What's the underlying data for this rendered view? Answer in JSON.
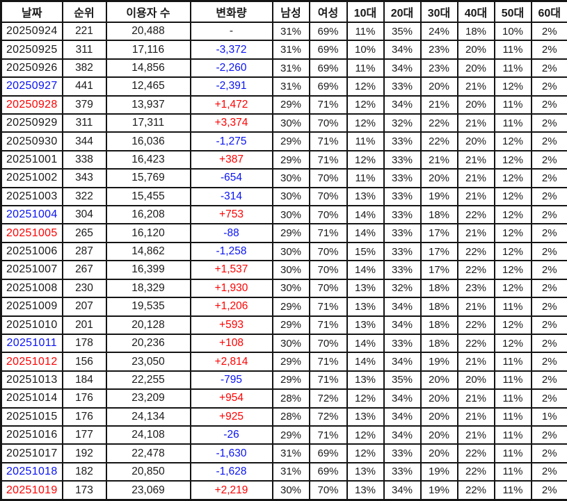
{
  "colors": {
    "text": "#1a1a1a",
    "border": "#141414",
    "positive_change": "#ff0000",
    "negative_change": "#0812f5",
    "sunday_date": "#ff0000",
    "saturday_date": "#0812f5",
    "background": "#ffffff"
  },
  "chart_data": {
    "type": "table",
    "title": "",
    "columns": [
      "날짜",
      "순위",
      "이용자 수",
      "변화량",
      "남성",
      "여성",
      "10대",
      "20대",
      "30대",
      "40대",
      "50대",
      "60대"
    ],
    "rows": [
      {
        "date": "20250924",
        "date_color": "black",
        "rank": "221",
        "users": "20,488",
        "change": "-",
        "change_color": "black",
        "percents": [
          "31%",
          "69%",
          "11%",
          "35%",
          "24%",
          "18%",
          "10%",
          "2%"
        ]
      },
      {
        "date": "20250925",
        "date_color": "black",
        "rank": "311",
        "users": "17,116",
        "change": "-3,372",
        "change_color": "blue",
        "percents": [
          "31%",
          "69%",
          "10%",
          "34%",
          "23%",
          "20%",
          "11%",
          "2%"
        ]
      },
      {
        "date": "20250926",
        "date_color": "black",
        "rank": "382",
        "users": "14,856",
        "change": "-2,260",
        "change_color": "blue",
        "percents": [
          "31%",
          "69%",
          "11%",
          "34%",
          "23%",
          "20%",
          "11%",
          "2%"
        ]
      },
      {
        "date": "20250927",
        "date_color": "blue",
        "rank": "441",
        "users": "12,465",
        "change": "-2,391",
        "change_color": "blue",
        "percents": [
          "31%",
          "69%",
          "12%",
          "33%",
          "20%",
          "21%",
          "12%",
          "2%"
        ]
      },
      {
        "date": "20250928",
        "date_color": "red",
        "rank": "379",
        "users": "13,937",
        "change": "+1,472",
        "change_color": "red",
        "percents": [
          "29%",
          "71%",
          "12%",
          "34%",
          "21%",
          "20%",
          "11%",
          "2%"
        ]
      },
      {
        "date": "20250929",
        "date_color": "black",
        "rank": "311",
        "users": "17,311",
        "change": "+3,374",
        "change_color": "red",
        "percents": [
          "30%",
          "70%",
          "12%",
          "32%",
          "22%",
          "21%",
          "11%",
          "2%"
        ]
      },
      {
        "date": "20250930",
        "date_color": "black",
        "rank": "344",
        "users": "16,036",
        "change": "-1,275",
        "change_color": "blue",
        "percents": [
          "29%",
          "71%",
          "11%",
          "33%",
          "22%",
          "20%",
          "12%",
          "2%"
        ]
      },
      {
        "date": "20251001",
        "date_color": "black",
        "rank": "338",
        "users": "16,423",
        "change": "+387",
        "change_color": "red",
        "percents": [
          "29%",
          "71%",
          "12%",
          "33%",
          "21%",
          "21%",
          "12%",
          "2%"
        ]
      },
      {
        "date": "20251002",
        "date_color": "black",
        "rank": "343",
        "users": "15,769",
        "change": "-654",
        "change_color": "blue",
        "percents": [
          "30%",
          "70%",
          "11%",
          "33%",
          "20%",
          "21%",
          "12%",
          "2%"
        ]
      },
      {
        "date": "20251003",
        "date_color": "black",
        "rank": "322",
        "users": "15,455",
        "change": "-314",
        "change_color": "blue",
        "percents": [
          "30%",
          "70%",
          "13%",
          "33%",
          "19%",
          "21%",
          "12%",
          "2%"
        ]
      },
      {
        "date": "20251004",
        "date_color": "blue",
        "rank": "304",
        "users": "16,208",
        "change": "+753",
        "change_color": "red",
        "percents": [
          "30%",
          "70%",
          "14%",
          "33%",
          "18%",
          "22%",
          "12%",
          "2%"
        ]
      },
      {
        "date": "20251005",
        "date_color": "red",
        "rank": "265",
        "users": "16,120",
        "change": "-88",
        "change_color": "blue",
        "percents": [
          "29%",
          "71%",
          "14%",
          "33%",
          "17%",
          "21%",
          "12%",
          "2%"
        ]
      },
      {
        "date": "20251006",
        "date_color": "black",
        "rank": "287",
        "users": "14,862",
        "change": "-1,258",
        "change_color": "blue",
        "percents": [
          "30%",
          "70%",
          "15%",
          "33%",
          "17%",
          "22%",
          "12%",
          "2%"
        ]
      },
      {
        "date": "20251007",
        "date_color": "black",
        "rank": "267",
        "users": "16,399",
        "change": "+1,537",
        "change_color": "red",
        "percents": [
          "30%",
          "70%",
          "14%",
          "33%",
          "17%",
          "22%",
          "12%",
          "2%"
        ]
      },
      {
        "date": "20251008",
        "date_color": "black",
        "rank": "230",
        "users": "18,329",
        "change": "+1,930",
        "change_color": "red",
        "percents": [
          "30%",
          "70%",
          "13%",
          "32%",
          "18%",
          "23%",
          "12%",
          "2%"
        ]
      },
      {
        "date": "20251009",
        "date_color": "black",
        "rank": "207",
        "users": "19,535",
        "change": "+1,206",
        "change_color": "red",
        "percents": [
          "29%",
          "71%",
          "13%",
          "34%",
          "18%",
          "21%",
          "11%",
          "2%"
        ]
      },
      {
        "date": "20251010",
        "date_color": "black",
        "rank": "201",
        "users": "20,128",
        "change": "+593",
        "change_color": "red",
        "percents": [
          "29%",
          "71%",
          "13%",
          "34%",
          "18%",
          "22%",
          "12%",
          "2%"
        ]
      },
      {
        "date": "20251011",
        "date_color": "blue",
        "rank": "178",
        "users": "20,236",
        "change": "+108",
        "change_color": "red",
        "percents": [
          "30%",
          "70%",
          "14%",
          "33%",
          "18%",
          "22%",
          "12%",
          "2%"
        ]
      },
      {
        "date": "20251012",
        "date_color": "red",
        "rank": "156",
        "users": "23,050",
        "change": "+2,814",
        "change_color": "red",
        "percents": [
          "29%",
          "71%",
          "14%",
          "34%",
          "19%",
          "21%",
          "11%",
          "2%"
        ]
      },
      {
        "date": "20251013",
        "date_color": "black",
        "rank": "184",
        "users": "22,255",
        "change": "-795",
        "change_color": "blue",
        "percents": [
          "29%",
          "71%",
          "13%",
          "35%",
          "20%",
          "20%",
          "11%",
          "2%"
        ]
      },
      {
        "date": "20251014",
        "date_color": "black",
        "rank": "176",
        "users": "23,209",
        "change": "+954",
        "change_color": "red",
        "percents": [
          "28%",
          "72%",
          "12%",
          "34%",
          "20%",
          "21%",
          "11%",
          "2%"
        ]
      },
      {
        "date": "20251015",
        "date_color": "black",
        "rank": "176",
        "users": "24,134",
        "change": "+925",
        "change_color": "red",
        "percents": [
          "28%",
          "72%",
          "13%",
          "34%",
          "20%",
          "21%",
          "11%",
          "1%"
        ]
      },
      {
        "date": "20251016",
        "date_color": "black",
        "rank": "177",
        "users": "24,108",
        "change": "-26",
        "change_color": "blue",
        "percents": [
          "29%",
          "71%",
          "12%",
          "34%",
          "20%",
          "21%",
          "11%",
          "2%"
        ]
      },
      {
        "date": "20251017",
        "date_color": "black",
        "rank": "192",
        "users": "22,478",
        "change": "-1,630",
        "change_color": "blue",
        "percents": [
          "31%",
          "69%",
          "12%",
          "33%",
          "20%",
          "22%",
          "11%",
          "2%"
        ]
      },
      {
        "date": "20251018",
        "date_color": "blue",
        "rank": "182",
        "users": "20,850",
        "change": "-1,628",
        "change_color": "blue",
        "percents": [
          "31%",
          "69%",
          "13%",
          "33%",
          "19%",
          "22%",
          "11%",
          "2%"
        ]
      },
      {
        "date": "20251019",
        "date_color": "red",
        "rank": "173",
        "users": "23,069",
        "change": "+2,219",
        "change_color": "red",
        "percents": [
          "30%",
          "70%",
          "13%",
          "34%",
          "19%",
          "22%",
          "11%",
          "2%"
        ]
      }
    ]
  }
}
